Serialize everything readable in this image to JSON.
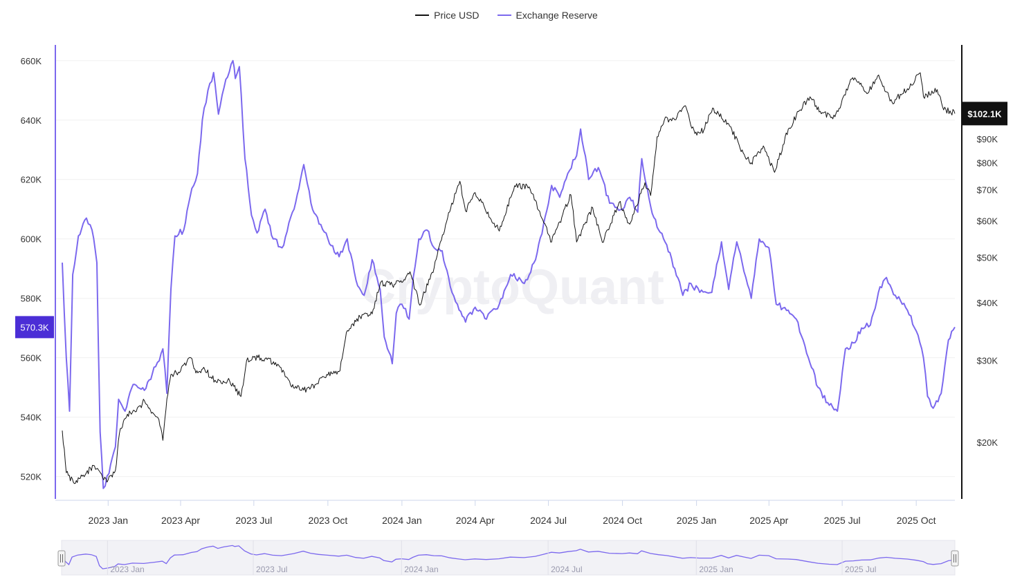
{
  "chart_data": {
    "type": "line",
    "watermark": "CryptoQuant",
    "legend": {
      "placement": "top-center",
      "items": [
        {
          "name": "Price USD",
          "color": "#111111"
        },
        {
          "name": "Exchange Reserve",
          "color": "#7b68ee"
        }
      ]
    },
    "x_axis": {
      "type": "date",
      "range": [
        "2022-11-05",
        "2025-11-18"
      ],
      "ticks": [
        {
          "date": "2023-01-01",
          "label": "2023 Jan"
        },
        {
          "date": "2023-04-01",
          "label": "2023 Apr"
        },
        {
          "date": "2023-07-01",
          "label": "2023 Jul"
        },
        {
          "date": "2023-10-01",
          "label": "2023 Oct"
        },
        {
          "date": "2024-01-01",
          "label": "2024 Jan"
        },
        {
          "date": "2024-04-01",
          "label": "2024 Apr"
        },
        {
          "date": "2024-07-01",
          "label": "2024 Jul"
        },
        {
          "date": "2024-10-01",
          "label": "2024 Oct"
        },
        {
          "date": "2025-01-01",
          "label": "2025 Jan"
        },
        {
          "date": "2025-04-01",
          "label": "2025 Apr"
        },
        {
          "date": "2025-07-01",
          "label": "2025 Jul"
        },
        {
          "date": "2025-10-01",
          "label": "2025 Oct"
        }
      ]
    },
    "left_axis": {
      "series": "Exchange Reserve",
      "scale": "linear",
      "range": [
        512000,
        666000
      ],
      "ticks": [
        {
          "value": 520000,
          "label": "520K"
        },
        {
          "value": 540000,
          "label": "540K"
        },
        {
          "value": 560000,
          "label": "560K"
        },
        {
          "value": 580000,
          "label": "580K"
        },
        {
          "value": 600000,
          "label": "600K"
        },
        {
          "value": 620000,
          "label": "620K"
        },
        {
          "value": 640000,
          "label": "640K"
        },
        {
          "value": 660000,
          "label": "660K"
        }
      ],
      "current_label": "570.3K",
      "current_value": 570300
    },
    "right_axis": {
      "series": "Price USD",
      "scale": "log",
      "range": [
        15000,
        145000
      ],
      "ticks": [
        {
          "value": 20000,
          "label": "$20K"
        },
        {
          "value": 30000,
          "label": "$30K"
        },
        {
          "value": 40000,
          "label": "$40K"
        },
        {
          "value": 50000,
          "label": "$50K"
        },
        {
          "value": 60000,
          "label": "$60K"
        },
        {
          "value": 70000,
          "label": "$70K"
        },
        {
          "value": 80000,
          "label": "$80K"
        },
        {
          "value": 90000,
          "label": "$90K"
        }
      ],
      "current_label": "$102.1K",
      "current_value": 102100
    },
    "grid": true,
    "series": [
      {
        "name": "Price USD",
        "axis": "right",
        "color": "#111111",
        "points": [
          [
            "2022-11-05",
            21200
          ],
          [
            "2022-11-10",
            17200
          ],
          [
            "2022-11-20",
            16300
          ],
          [
            "2022-12-01",
            17000
          ],
          [
            "2022-12-15",
            17800
          ],
          [
            "2022-12-25",
            16800
          ],
          [
            "2023-01-01",
            16600
          ],
          [
            "2023-01-10",
            17400
          ],
          [
            "2023-01-15",
            20900
          ],
          [
            "2023-01-25",
            23000
          ],
          [
            "2023-02-05",
            23300
          ],
          [
            "2023-02-15",
            24600
          ],
          [
            "2023-02-25",
            23200
          ],
          [
            "2023-03-05",
            22400
          ],
          [
            "2023-03-10",
            20200
          ],
          [
            "2023-03-15",
            24800
          ],
          [
            "2023-03-20",
            28000
          ],
          [
            "2023-04-01",
            28500
          ],
          [
            "2023-04-14",
            30400
          ],
          [
            "2023-04-20",
            28200
          ],
          [
            "2023-05-01",
            28700
          ],
          [
            "2023-05-15",
            27000
          ],
          [
            "2023-06-01",
            27100
          ],
          [
            "2023-06-15",
            25100
          ],
          [
            "2023-06-22",
            30000
          ],
          [
            "2023-07-01",
            30500
          ],
          [
            "2023-07-15",
            30300
          ],
          [
            "2023-08-01",
            29300
          ],
          [
            "2023-08-17",
            26300
          ],
          [
            "2023-09-01",
            25900
          ],
          [
            "2023-09-15",
            26600
          ],
          [
            "2023-10-01",
            27900
          ],
          [
            "2023-10-16",
            28500
          ],
          [
            "2023-10-24",
            34500
          ],
          [
            "2023-11-10",
            37300
          ],
          [
            "2023-11-25",
            37800
          ],
          [
            "2023-12-05",
            44000
          ],
          [
            "2023-12-20",
            43700
          ],
          [
            "2024-01-01",
            44200
          ],
          [
            "2024-01-11",
            46600
          ],
          [
            "2024-01-23",
            39500
          ],
          [
            "2024-02-10",
            47500
          ],
          [
            "2024-02-28",
            62500
          ],
          [
            "2024-03-13",
            73000
          ],
          [
            "2024-03-20",
            63000
          ],
          [
            "2024-04-01",
            69000
          ],
          [
            "2024-04-13",
            63800
          ],
          [
            "2024-05-01",
            57000
          ],
          [
            "2024-05-20",
            71400
          ],
          [
            "2024-06-07",
            71000
          ],
          [
            "2024-06-24",
            60300
          ],
          [
            "2024-07-05",
            54000
          ],
          [
            "2024-07-29",
            68200
          ],
          [
            "2024-08-05",
            54000
          ],
          [
            "2024-08-25",
            64000
          ],
          [
            "2024-09-06",
            53900
          ],
          [
            "2024-09-27",
            65800
          ],
          [
            "2024-10-10",
            59000
          ],
          [
            "2024-10-29",
            72500
          ],
          [
            "2024-11-05",
            68000
          ],
          [
            "2024-11-13",
            91000
          ],
          [
            "2024-11-22",
            98800
          ],
          [
            "2024-12-05",
            99000
          ],
          [
            "2024-12-17",
            106000
          ],
          [
            "2024-12-30",
            92500
          ],
          [
            "2025-01-10",
            94000
          ],
          [
            "2025-01-21",
            105000
          ],
          [
            "2025-02-10",
            97000
          ],
          [
            "2025-02-28",
            84000
          ],
          [
            "2025-03-10",
            80000
          ],
          [
            "2025-03-25",
            87000
          ],
          [
            "2025-04-08",
            76300
          ],
          [
            "2025-04-25",
            94500
          ],
          [
            "2025-05-10",
            104000
          ],
          [
            "2025-05-22",
            111000
          ],
          [
            "2025-06-05",
            102000
          ],
          [
            "2025-06-22",
            100500
          ],
          [
            "2025-07-14",
            122000
          ],
          [
            "2025-08-02",
            113000
          ],
          [
            "2025-08-14",
            123000
          ],
          [
            "2025-09-01",
            108000
          ],
          [
            "2025-09-20",
            115500
          ],
          [
            "2025-10-06",
            125000
          ],
          [
            "2025-10-10",
            111000
          ],
          [
            "2025-10-27",
            115000
          ],
          [
            "2025-11-04",
            104000
          ],
          [
            "2025-11-12",
            103500
          ],
          [
            "2025-11-18",
            102100
          ]
        ]
      },
      {
        "name": "Exchange Reserve",
        "axis": "left",
        "color": "#7b68ee",
        "points": [
          [
            "2022-11-05",
            592000
          ],
          [
            "2022-11-10",
            560000
          ],
          [
            "2022-11-14",
            542000
          ],
          [
            "2022-11-18",
            588000
          ],
          [
            "2022-11-25",
            601000
          ],
          [
            "2022-12-05",
            607000
          ],
          [
            "2022-12-12",
            603000
          ],
          [
            "2022-12-18",
            592000
          ],
          [
            "2022-12-22",
            535000
          ],
          [
            "2022-12-26",
            516000
          ],
          [
            "2023-01-02",
            521000
          ],
          [
            "2023-01-10",
            530000
          ],
          [
            "2023-01-14",
            546000
          ],
          [
            "2023-01-22",
            542000
          ],
          [
            "2023-02-01",
            551000
          ],
          [
            "2023-02-15",
            549000
          ],
          [
            "2023-03-01",
            557000
          ],
          [
            "2023-03-10",
            563000
          ],
          [
            "2023-03-15",
            548000
          ],
          [
            "2023-03-20",
            583000
          ],
          [
            "2023-03-25",
            601000
          ],
          [
            "2023-04-05",
            603000
          ],
          [
            "2023-04-15",
            617000
          ],
          [
            "2023-04-22",
            622000
          ],
          [
            "2023-04-28",
            640000
          ],
          [
            "2023-05-05",
            650000
          ],
          [
            "2023-05-12",
            656000
          ],
          [
            "2023-05-18",
            642000
          ],
          [
            "2023-05-25",
            651000
          ],
          [
            "2023-06-05",
            660000
          ],
          [
            "2023-06-08",
            654000
          ],
          [
            "2023-06-13",
            658000
          ],
          [
            "2023-06-20",
            627000
          ],
          [
            "2023-06-28",
            608000
          ],
          [
            "2023-07-05",
            602000
          ],
          [
            "2023-07-15",
            610000
          ],
          [
            "2023-07-25",
            600000
          ],
          [
            "2023-08-05",
            597000
          ],
          [
            "2023-08-20",
            610000
          ],
          [
            "2023-09-01",
            625000
          ],
          [
            "2023-09-10",
            612000
          ],
          [
            "2023-09-20",
            605000
          ],
          [
            "2023-10-01",
            600000
          ],
          [
            "2023-10-15",
            594000
          ],
          [
            "2023-10-25",
            600000
          ],
          [
            "2023-11-05",
            586000
          ],
          [
            "2023-11-15",
            581000
          ],
          [
            "2023-11-25",
            593000
          ],
          [
            "2023-12-05",
            583000
          ],
          [
            "2023-12-10",
            567000
          ],
          [
            "2023-12-20",
            558000
          ],
          [
            "2023-12-25",
            575000
          ],
          [
            "2024-01-01",
            578000
          ],
          [
            "2024-01-10",
            573000
          ],
          [
            "2024-01-15",
            587000
          ],
          [
            "2024-01-22",
            600000
          ],
          [
            "2024-02-01",
            603000
          ],
          [
            "2024-02-10",
            597000
          ],
          [
            "2024-02-20",
            596000
          ],
          [
            "2024-03-01",
            584000
          ],
          [
            "2024-03-10",
            578000
          ],
          [
            "2024-03-20",
            572000
          ],
          [
            "2024-04-01",
            577000
          ],
          [
            "2024-04-15",
            573000
          ],
          [
            "2024-05-01",
            578000
          ],
          [
            "2024-05-15",
            588000
          ],
          [
            "2024-06-01",
            585000
          ],
          [
            "2024-06-15",
            593000
          ],
          [
            "2024-06-25",
            605000
          ],
          [
            "2024-07-05",
            618000
          ],
          [
            "2024-07-15",
            614000
          ],
          [
            "2024-07-25",
            622000
          ],
          [
            "2024-08-05",
            628000
          ],
          [
            "2024-08-10",
            637000
          ],
          [
            "2024-08-20",
            620000
          ],
          [
            "2024-09-01",
            624000
          ],
          [
            "2024-09-15",
            612000
          ],
          [
            "2024-10-01",
            610000
          ],
          [
            "2024-10-10",
            614000
          ],
          [
            "2024-10-20",
            609000
          ],
          [
            "2024-10-25",
            627000
          ],
          [
            "2024-11-05",
            611000
          ],
          [
            "2024-11-15",
            603000
          ],
          [
            "2024-11-25",
            598000
          ],
          [
            "2024-12-05",
            590000
          ],
          [
            "2024-12-15",
            581000
          ],
          [
            "2024-12-25",
            585000
          ],
          [
            "2025-01-05",
            582000
          ],
          [
            "2025-01-20",
            582000
          ],
          [
            "2025-02-01",
            599000
          ],
          [
            "2025-02-10",
            583000
          ],
          [
            "2025-02-20",
            599000
          ],
          [
            "2025-03-01",
            589000
          ],
          [
            "2025-03-10",
            580000
          ],
          [
            "2025-03-20",
            600000
          ],
          [
            "2025-04-01",
            597000
          ],
          [
            "2025-04-10",
            578000
          ],
          [
            "2025-04-25",
            576000
          ],
          [
            "2025-05-05",
            573000
          ],
          [
            "2025-05-20",
            560000
          ],
          [
            "2025-06-01",
            550000
          ],
          [
            "2025-06-15",
            544000
          ],
          [
            "2025-06-25",
            542000
          ],
          [
            "2025-07-05",
            563000
          ],
          [
            "2025-07-15",
            565000
          ],
          [
            "2025-07-25",
            570000
          ],
          [
            "2025-08-05",
            571000
          ],
          [
            "2025-08-15",
            582000
          ],
          [
            "2025-08-25",
            587000
          ],
          [
            "2025-09-05",
            581000
          ],
          [
            "2025-09-20",
            576000
          ],
          [
            "2025-10-01",
            569000
          ],
          [
            "2025-10-10",
            560000
          ],
          [
            "2025-10-15",
            547000
          ],
          [
            "2025-10-22",
            543000
          ],
          [
            "2025-11-01",
            548000
          ],
          [
            "2025-11-10",
            566000
          ],
          [
            "2025-11-18",
            570300
          ]
        ]
      }
    ]
  },
  "navigator": {
    "labels": [
      "2023 Jan",
      "2023 Jul",
      "2024 Jan",
      "2024 Jul",
      "2025 Jan",
      "2025 Jul"
    ],
    "dates": [
      "2023-01-01",
      "2023-07-01",
      "2024-01-01",
      "2024-07-01",
      "2025-01-01",
      "2025-07-01"
    ],
    "selection": [
      "2022-11-05",
      "2025-11-18"
    ]
  }
}
